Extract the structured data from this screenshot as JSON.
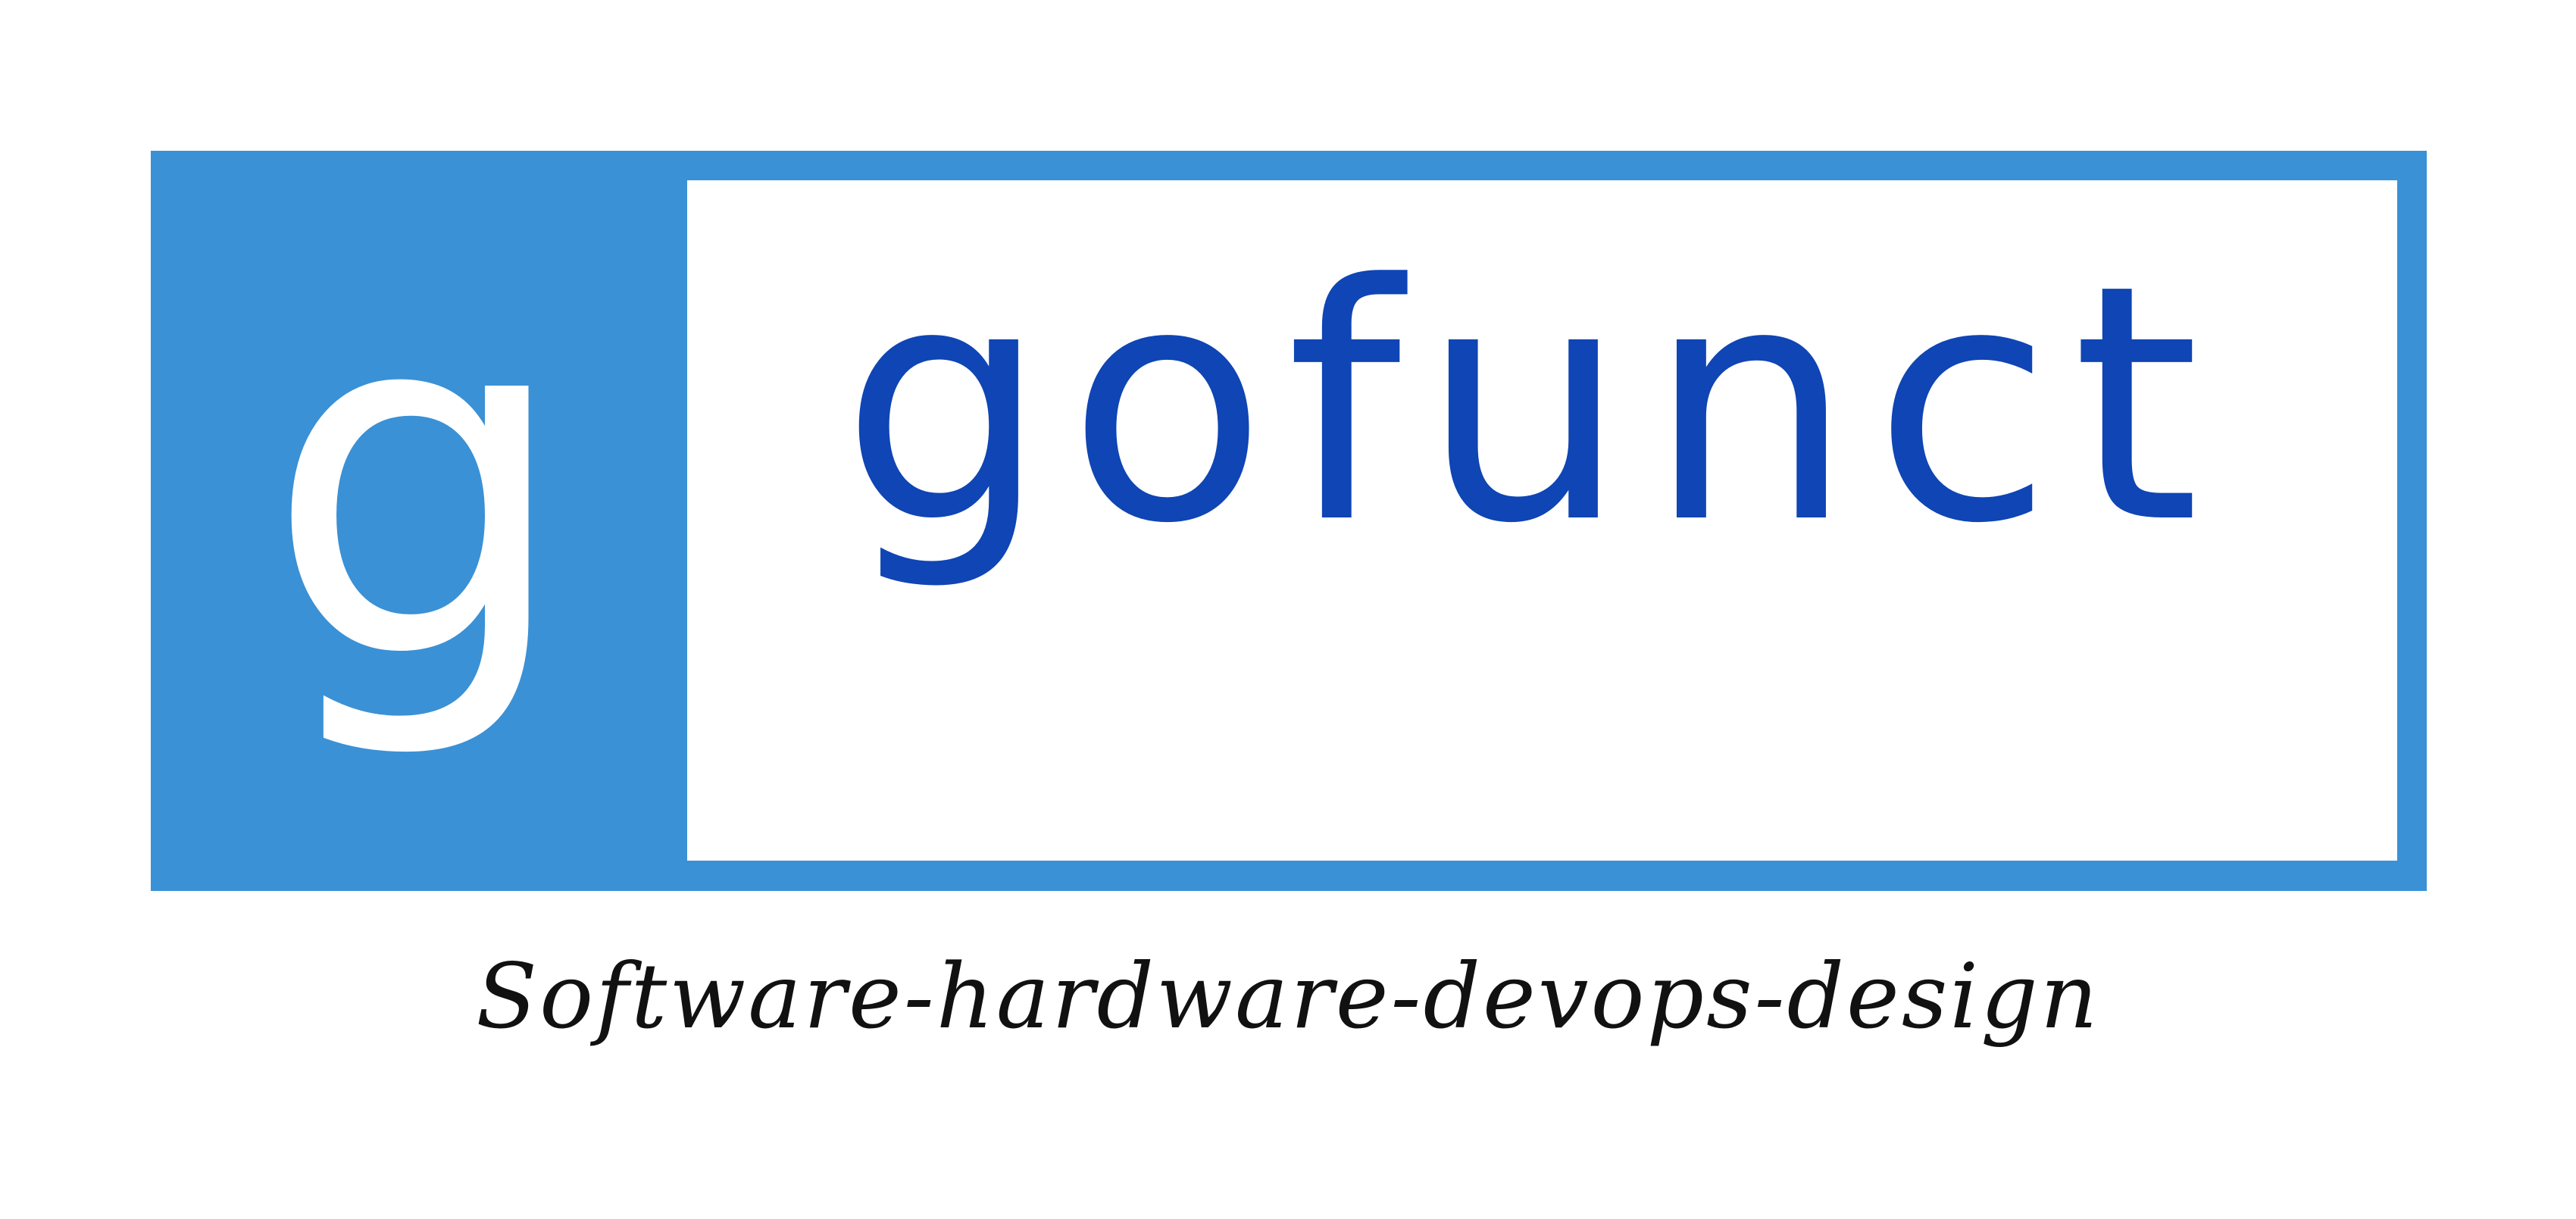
{
  "logo": {
    "mark_letter": "g",
    "brand_name": "gofunct",
    "tagline": "Software-hardware-devops-design",
    "colors": {
      "frame": "#3a91d6",
      "brand_text": "#0f45b4",
      "mark_text": "#ffffff",
      "tagline_text": "#111111",
      "background": "#ffffff"
    }
  }
}
